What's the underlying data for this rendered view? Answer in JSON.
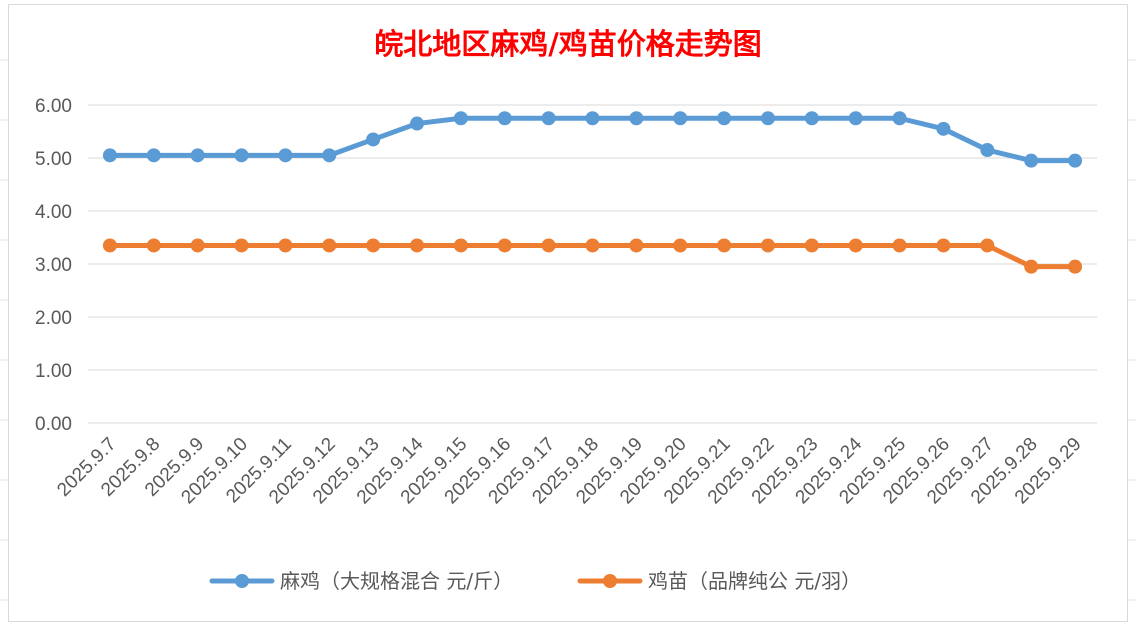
{
  "chart_data": {
    "type": "line",
    "title": "皖北地区麻鸡/鸡苗价格走势图",
    "categories": [
      "2025.9.7",
      "2025.9.8",
      "2025.9.9",
      "2025.9.10",
      "2025.9.11",
      "2025.9.12",
      "2025.9.13",
      "2025.9.14",
      "2025.9.15",
      "2025.9.16",
      "2025.9.17",
      "2025.9.18",
      "2025.9.19",
      "2025.9.20",
      "2025.9.21",
      "2025.9.22",
      "2025.9.23",
      "2025.9.24",
      "2025.9.25",
      "2025.9.26",
      "2025.9.27",
      "2025.9.28",
      "2025.9.29"
    ],
    "series": [
      {
        "name": "麻鸡（大规格混合 元/斤）",
        "color": "#5b9bd5",
        "values": [
          5.05,
          5.05,
          5.05,
          5.05,
          5.05,
          5.05,
          5.35,
          5.65,
          5.75,
          5.75,
          5.75,
          5.75,
          5.75,
          5.75,
          5.75,
          5.75,
          5.75,
          5.75,
          5.75,
          5.55,
          5.15,
          4.95,
          4.95
        ]
      },
      {
        "name": "鸡苗（品牌纯公 元/羽）",
        "color": "#ed7d31",
        "values": [
          3.35,
          3.35,
          3.35,
          3.35,
          3.35,
          3.35,
          3.35,
          3.35,
          3.35,
          3.35,
          3.35,
          3.35,
          3.35,
          3.35,
          3.35,
          3.35,
          3.35,
          3.35,
          3.35,
          3.35,
          3.35,
          2.95,
          2.95
        ]
      }
    ],
    "yticks": [
      "0.00",
      "1.00",
      "2.00",
      "3.00",
      "4.00",
      "5.00",
      "6.00"
    ],
    "ylim": [
      0,
      6
    ],
    "xlabel": "",
    "ylabel": "",
    "grid": true,
    "legend_position": "bottom",
    "title_color": "#ff0000"
  }
}
